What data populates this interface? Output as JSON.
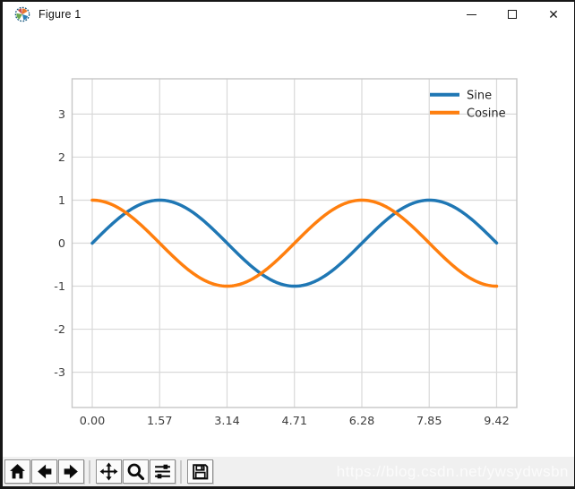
{
  "window": {
    "title": "Figure 1",
    "app_icon": "matplotlib-logo",
    "controls": {
      "close_glyph": "✕"
    }
  },
  "chart_data": {
    "type": "line",
    "title": "",
    "xlabel": "",
    "ylabel": "",
    "x_tick_labels": [
      "0.00",
      "1.57",
      "3.14",
      "4.71",
      "6.28",
      "7.85",
      "9.42"
    ],
    "x_ticks": [
      0,
      1.57,
      3.14,
      4.71,
      6.28,
      7.85,
      9.42
    ],
    "y_ticks": [
      3,
      2,
      1,
      0,
      -1,
      -2,
      -3
    ],
    "xlim": [
      -0.47,
      9.89
    ],
    "ylim": [
      -3.82,
      3.82
    ],
    "x_range": [
      0,
      9.42
    ],
    "grid": true,
    "legend": {
      "position": "upper right",
      "frame": false,
      "entries": [
        "Sine",
        "Cosine"
      ]
    },
    "series": [
      {
        "name": "Sine",
        "color": "#1f77b4",
        "function": "sin",
        "linewidth": 3.5,
        "values_at_ticks": [
          0,
          1,
          0,
          -1,
          0,
          1,
          0
        ]
      },
      {
        "name": "Cosine",
        "color": "#ff7f0e",
        "function": "cos",
        "linewidth": 3.5,
        "values_at_ticks": [
          1,
          0,
          -1,
          0,
          1,
          0,
          -1
        ]
      }
    ],
    "style": {
      "grid_color": "#d9d9d9",
      "spine_color": "#c6c6c6",
      "tick_label_color": "#3c3c3c",
      "background": "#ffffff"
    }
  },
  "toolbar": {
    "buttons": [
      {
        "id": "home",
        "icon": "home-icon"
      },
      {
        "id": "back",
        "icon": "arrow-left-icon"
      },
      {
        "id": "forward",
        "icon": "arrow-right-icon"
      },
      {
        "id": "pan",
        "icon": "move-arrows-icon"
      },
      {
        "id": "zoom",
        "icon": "magnifier-icon"
      },
      {
        "id": "subplots",
        "icon": "sliders-icon"
      },
      {
        "id": "save",
        "icon": "floppy-disk-icon"
      }
    ],
    "watermark": "https://blog.csdn.net/ywsydwsbn"
  }
}
